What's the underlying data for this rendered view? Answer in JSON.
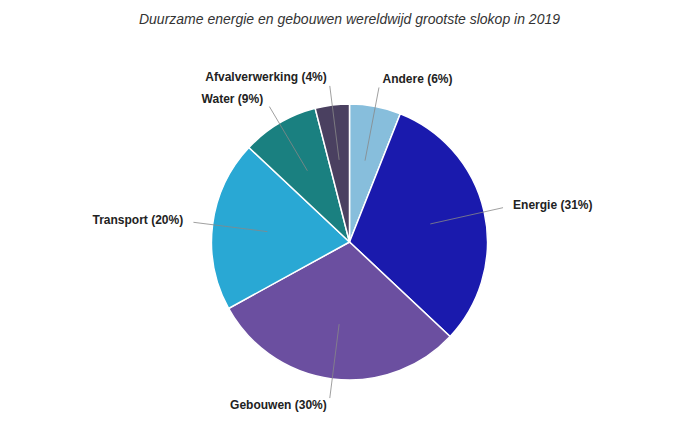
{
  "chart_data": {
    "type": "pie",
    "title": "Duurzame energie en gebouwen wereldwijd grootste slokop in 2019",
    "values": [
      6,
      31,
      30,
      20,
      9,
      4
    ],
    "value_labels": [
      "Andere (6%)",
      "Energie (31%)",
      "Gebouwen (30%)",
      "Transport (20%)",
      "Water (9%)",
      "Afvalverwerking (4%)"
    ],
    "colors": [
      "#87bedc",
      "#1a1aad",
      "#6b4fa0",
      "#29a8d4",
      "#1a8080",
      "#4a4060"
    ],
    "data_labels": true
  }
}
